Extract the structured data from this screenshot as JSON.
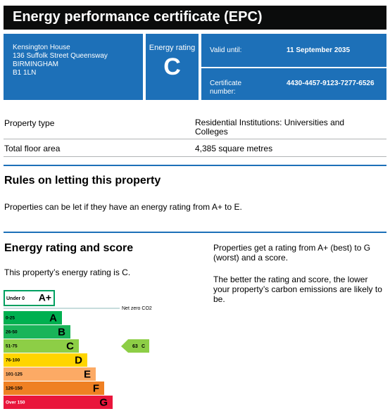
{
  "header": {
    "title": "Energy performance certificate (EPC)"
  },
  "address": [
    "Kensington House",
    "136 Suffolk Street Queensway",
    "BIRMINGHAM",
    "B1 1LN"
  ],
  "rating_box": {
    "label": "Energy rating",
    "rating": "C"
  },
  "valid": {
    "label": "Valid until:",
    "value": "11 September 2035"
  },
  "certificate": {
    "label": "Certificate number:",
    "value": "4430-4457-9123-7277-6526"
  },
  "property": [
    {
      "label": "Property type",
      "value": "Residential Institutions: Universities and Colleges"
    },
    {
      "label": "Total floor area",
      "value": "4,385 square metres"
    }
  ],
  "rules": {
    "title": "Rules on letting this property",
    "text": "Properties can be let if they have an energy rating from A+ to E."
  },
  "energy": {
    "title": "Energy rating and score",
    "text": "This property’s energy rating is C.",
    "notes": [
      "Properties get a rating from A+ (best) to G (worst) and a score.",
      "The better the rating and score, the lower your property’s carbon emissions are likely to be."
    ],
    "net_zero": "Net zero CO2",
    "bands": [
      {
        "range": "Under 0",
        "letter": "A+",
        "color": "#ffffff"
      },
      {
        "range": "0-25",
        "letter": "A",
        "color": "#00b050"
      },
      {
        "range": "26-50",
        "letter": "B",
        "color": "#19b459"
      },
      {
        "range": "51-75",
        "letter": "C",
        "color": "#8dce46"
      },
      {
        "range": "76-100",
        "letter": "D",
        "color": "#ffd500"
      },
      {
        "range": "101-125",
        "letter": "E",
        "color": "#fcaa65"
      },
      {
        "range": "126-150",
        "letter": "F",
        "color": "#ef8023"
      },
      {
        "range": "Over 150",
        "letter": "G",
        "color": "#e9153b"
      }
    ],
    "current": {
      "score": 63,
      "rating": "C"
    }
  }
}
